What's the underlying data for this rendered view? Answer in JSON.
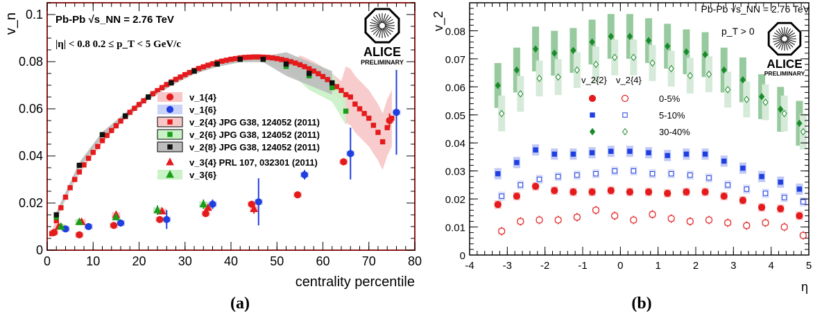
{
  "panels": {
    "a": {
      "caption": "(a)",
      "header": "Pb-Pb √s_NN = 2.76 TeV",
      "cuts": "|η| < 0.8      0.2 ≤ p_T < 5 GeV/c",
      "logo": {
        "line1": "ALICE",
        "line2": "PRELIMINARY"
      }
    },
    "b": {
      "caption": "(b)",
      "header": "Pb-Pb √s_NN = 2.76 TeV",
      "cut": "p_T > 0",
      "logo": {
        "line1": "ALICE",
        "line2": "PRELIMINARY"
      },
      "legend_header": {
        "col1": "v_2{2}",
        "col2": "v_2{4}"
      }
    }
  },
  "chart_data": [
    {
      "type": "scatter",
      "title": "",
      "xlabel": "centrality percentile",
      "ylabel": "v_n",
      "xlim": [
        0,
        80
      ],
      "ylim": [
        0,
        0.105
      ],
      "xticks": [
        0,
        10,
        20,
        30,
        40,
        50,
        60,
        70,
        80
      ],
      "yticks": [
        0,
        0.02,
        0.04,
        0.06,
        0.08,
        0.1
      ],
      "ytick_labels": [
        "0",
        "0.02",
        "0.04",
        "0.06",
        "0.08",
        "0.1"
      ],
      "legend_position": "center-right",
      "series": [
        {
          "name": "v_1{4}",
          "color": "#e41a1c",
          "marker": "circle",
          "x": [
            1.5,
            7,
            14.5,
            24.5,
            34.5,
            44.5,
            54.5,
            64.5,
            74.5
          ],
          "y": [
            0.0075,
            0.0065,
            0.0105,
            0.013,
            0.0155,
            0.0195,
            0.0235,
            0.0375,
            0.055
          ],
          "err": [
            0.001,
            0.0005,
            0.0008,
            0.001,
            0.001,
            0.001,
            0.001,
            0.0015,
            0.003
          ]
        },
        {
          "name": "v_1{6}",
          "color": "#1f3fe0",
          "marker": "circle",
          "x": [
            4,
            9,
            16,
            26,
            36,
            46,
            56,
            66,
            76
          ],
          "y": [
            0.009,
            0.01,
            0.0115,
            0.013,
            0.0195,
            0.0205,
            0.032,
            0.041,
            0.0585
          ],
          "err": [
            0.001,
            0.001,
            0.0015,
            0.004,
            0.002,
            0.01,
            0.002,
            0.011,
            0.018
          ]
        },
        {
          "name": "v_2{4} JPG G38, 124052 (2011)",
          "color": "#e41a1c",
          "marker": "square",
          "x": [
            1,
            2,
            3,
            4,
            5,
            6,
            7,
            8,
            9,
            10,
            11,
            12,
            13,
            14,
            15,
            16,
            17,
            18,
            19,
            20,
            21,
            22,
            23,
            24,
            25,
            26,
            27,
            28,
            29,
            30,
            31,
            32,
            33,
            34,
            35,
            36,
            37,
            38,
            39,
            40,
            41,
            42,
            43,
            44,
            45,
            46,
            47,
            48,
            49,
            50,
            51,
            52,
            53,
            54,
            55,
            56,
            57,
            58,
            59,
            60,
            61,
            62,
            63,
            64,
            65,
            66,
            67,
            68,
            69,
            70,
            71,
            72,
            73,
            74,
            75
          ],
          "y": [
            0.007,
            0.0125,
            0.018,
            0.0225,
            0.0265,
            0.03,
            0.0332,
            0.0362,
            0.039,
            0.0415,
            0.044,
            0.0465,
            0.0487,
            0.0508,
            0.0528,
            0.0548,
            0.0567,
            0.0585,
            0.0602,
            0.0618,
            0.0634,
            0.0649,
            0.0664,
            0.0677,
            0.069,
            0.0703,
            0.0714,
            0.0725,
            0.0735,
            0.0745,
            0.0754,
            0.0763,
            0.0771,
            0.0778,
            0.0785,
            0.0791,
            0.0797,
            0.0802,
            0.0806,
            0.081,
            0.0813,
            0.0816,
            0.0818,
            0.0819,
            0.082,
            0.082,
            0.0819,
            0.0818,
            0.0816,
            0.0813,
            0.0809,
            0.0805,
            0.08,
            0.0794,
            0.0787,
            0.0779,
            0.077,
            0.076,
            0.0749,
            0.0737,
            0.0724,
            0.071,
            0.0694,
            0.0678,
            0.066,
            0.065,
            0.062,
            0.06,
            0.058,
            0.056,
            0.053,
            0.05,
            0.046,
            0.052,
            0.056
          ]
        },
        {
          "name": "v_2{6} JPG G38, 124052 (2011)",
          "color": "#1a9e1a",
          "marker": "square",
          "x": [
            2,
            7,
            12,
            17,
            22,
            27,
            32,
            37,
            42,
            47,
            52,
            57,
            62,
            65
          ],
          "y": [
            0.014,
            0.036,
            0.049,
            0.057,
            0.065,
            0.071,
            0.076,
            0.079,
            0.081,
            0.081,
            0.078,
            0.074,
            0.069,
            0.059
          ]
        },
        {
          "name": "v_2{8} JPG G38, 124052 (2011)",
          "color": "#111111",
          "marker": "square",
          "x": [
            2,
            7,
            12,
            17,
            22,
            27,
            32,
            37,
            42,
            47,
            52,
            57,
            62
          ],
          "y": [
            0.015,
            0.036,
            0.049,
            0.057,
            0.065,
            0.071,
            0.076,
            0.079,
            0.081,
            0.081,
            0.079,
            0.075,
            0.071
          ]
        },
        {
          "name": "v_3{4} PRL 107, 032301 (2011)",
          "color": "#e41a1c",
          "marker": "triangle",
          "x": [
            2.5,
            7.5,
            15,
            25,
            35,
            45
          ],
          "y": [
            0.01,
            0.012,
            0.015,
            0.0165,
            0.018,
            0.0175
          ],
          "err": [
            0.001,
            0.001,
            0.001,
            0.001,
            0.001,
            0.002
          ]
        },
        {
          "name": "v_3{6}",
          "color": "#1a9e1a",
          "marker": "triangle",
          "x": [
            3,
            7,
            15,
            24,
            34
          ],
          "y": [
            0.01,
            0.012,
            0.014,
            0.017,
            0.0195
          ],
          "err": [
            0.001,
            0.001,
            0.001,
            0.002,
            0.002
          ]
        }
      ]
    },
    {
      "type": "scatter",
      "title": "",
      "xlabel": "η",
      "ylabel": "v_2",
      "xlim": [
        -4,
        5
      ],
      "ylim": [
        0,
        0.09
      ],
      "xticks": [
        -4,
        -3,
        -2,
        -1,
        0,
        1,
        2,
        3,
        4,
        5
      ],
      "yticks": [
        0,
        0.01,
        0.02,
        0.03,
        0.04,
        0.05,
        0.06,
        0.07,
        0.08
      ],
      "ytick_labels": [
        "0",
        "0.01",
        "0.02",
        "0.03",
        "0.04",
        "0.05",
        "0.06",
        "0.07",
        "0.08"
      ],
      "legend_position": "center-right",
      "groups": [
        {
          "name": "0-5%",
          "color": "#e41a1c",
          "v22": {
            "x": [
              -3.25,
              -2.75,
              -2.25,
              -1.75,
              -1.25,
              -0.75,
              -0.25,
              0.25,
              0.75,
              1.25,
              1.75,
              2.25,
              2.75,
              3.25,
              3.75,
              4.25,
              4.75
            ],
            "y": [
              0.018,
              0.021,
              0.0245,
              0.023,
              0.0225,
              0.0225,
              0.023,
              0.0225,
              0.0225,
              0.022,
              0.0225,
              0.0225,
              0.021,
              0.0195,
              0.017,
              0.0165,
              0.014
            ]
          },
          "v24": {
            "x": [
              -3.15,
              -2.65,
              -2.15,
              -1.65,
              -1.15,
              -0.65,
              -0.15,
              0.35,
              0.85,
              1.35,
              1.85,
              2.35,
              2.85,
              3.35,
              3.85,
              4.35,
              4.85
            ],
            "y": [
              0.0085,
              0.012,
              0.0125,
              0.0125,
              0.0135,
              0.016,
              0.014,
              0.0125,
              0.0145,
              0.013,
              0.012,
              0.0125,
              0.0115,
              0.0105,
              0.0115,
              0.01,
              0.007
            ]
          }
        },
        {
          "name": "5-10%",
          "color": "#1f3fe0",
          "v22": {
            "x": [
              -3.25,
              -2.75,
              -2.25,
              -1.75,
              -1.25,
              -0.75,
              -0.25,
              0.25,
              0.75,
              1.25,
              1.75,
              2.25,
              2.75,
              3.25,
              3.75,
              4.25,
              4.75
            ],
            "y": [
              0.029,
              0.033,
              0.0375,
              0.036,
              0.036,
              0.0365,
              0.037,
              0.037,
              0.0365,
              0.0355,
              0.036,
              0.036,
              0.0335,
              0.031,
              0.028,
              0.026,
              0.0235
            ]
          },
          "v24": {
            "x": [
              -3.15,
              -2.65,
              -2.15,
              -1.65,
              -1.15,
              -0.65,
              -0.15,
              0.35,
              0.85,
              1.35,
              1.85,
              2.35,
              2.85,
              3.35,
              3.85,
              4.35,
              4.85
            ],
            "y": [
              0.021,
              0.025,
              0.027,
              0.028,
              0.0285,
              0.029,
              0.03,
              0.03,
              0.029,
              0.029,
              0.0285,
              0.0275,
              0.025,
              0.0235,
              0.022,
              0.0205,
              0.019
            ]
          }
        },
        {
          "name": "30-40%",
          "color": "#1a8a2a",
          "v22": {
            "x": [
              -3.25,
              -2.75,
              -2.25,
              -1.75,
              -1.25,
              -0.75,
              -0.25,
              0.25,
              0.75,
              1.25,
              1.75,
              2.25,
              2.75,
              3.25,
              3.75,
              4.25,
              4.75
            ],
            "y": [
              0.0605,
              0.066,
              0.0735,
              0.072,
              0.073,
              0.076,
              0.078,
              0.078,
              0.0765,
              0.0745,
              0.0725,
              0.0715,
              0.066,
              0.0625,
              0.0565,
              0.052,
              0.047
            ]
          },
          "v24": {
            "x": [
              -3.15,
              -2.65,
              -2.15,
              -1.65,
              -1.15,
              -0.65,
              -0.15,
              0.35,
              0.85,
              1.35,
              1.85,
              2.35,
              2.85,
              3.35,
              3.85,
              4.35,
              4.85
            ],
            "y": [
              0.0505,
              0.0575,
              0.063,
              0.0635,
              0.066,
              0.068,
              0.0705,
              0.0705,
              0.0685,
              0.0665,
              0.064,
              0.0645,
              0.059,
              0.0555,
              0.0545,
              0.0505,
              0.044
            ]
          }
        }
      ]
    }
  ]
}
